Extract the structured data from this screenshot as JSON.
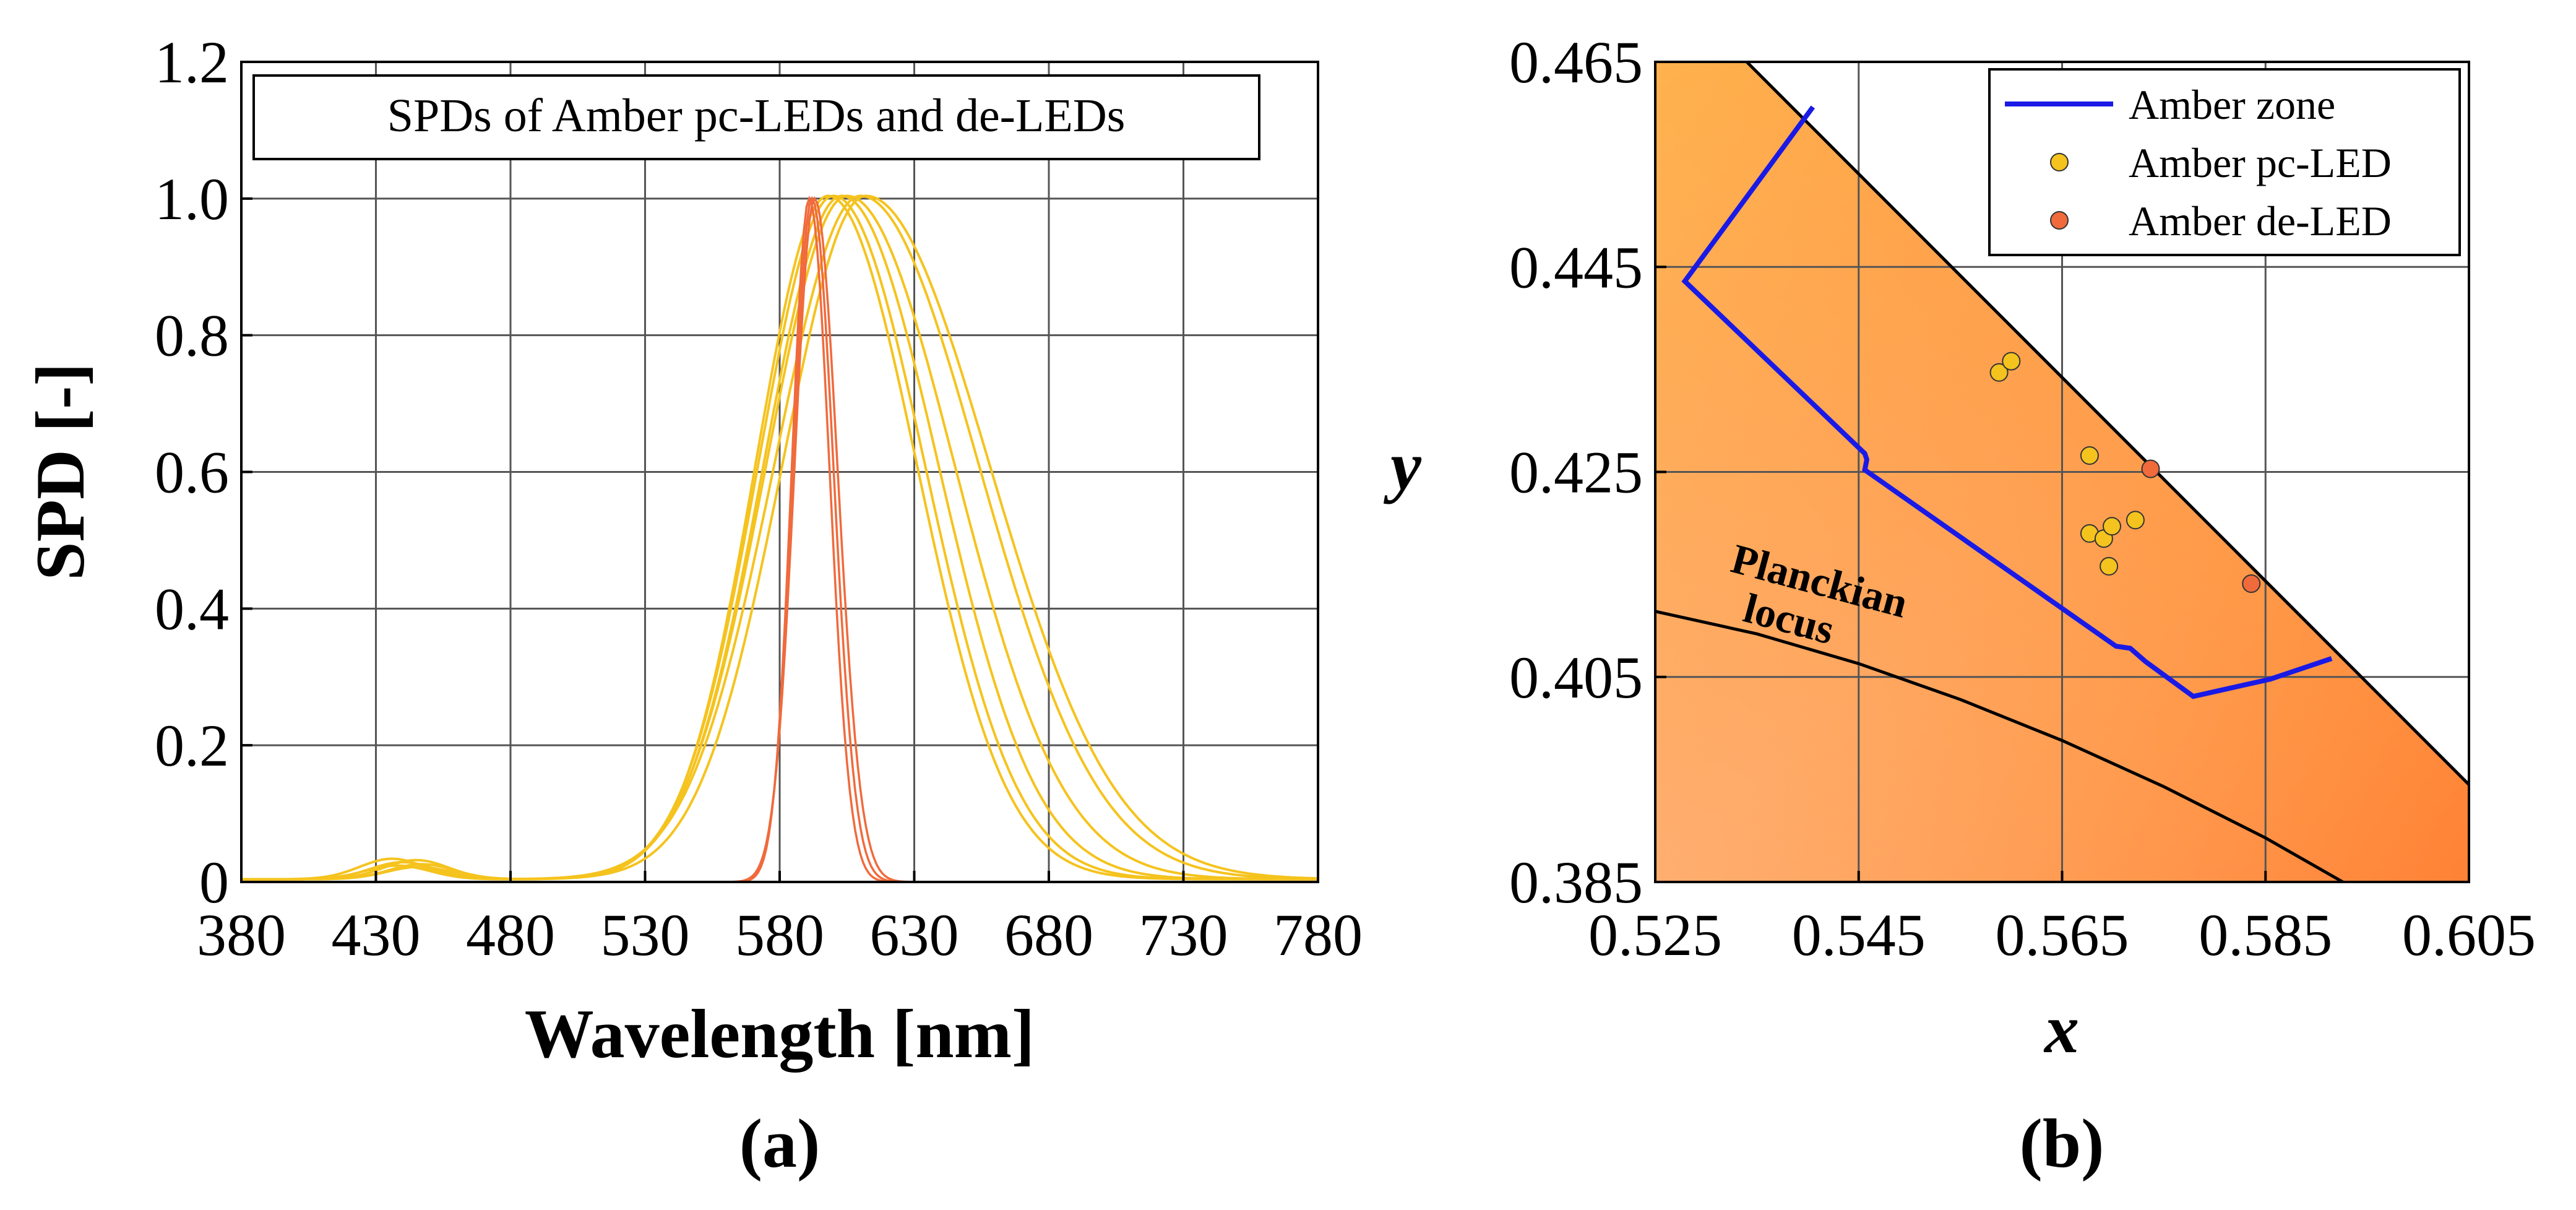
{
  "chart_data": [
    {
      "id": "a",
      "type": "line",
      "panel_label": "(a)",
      "title": "SPDs of Amber pc-LEDs and de-LEDs",
      "xlabel": "Wavelength [nm]",
      "ylabel": "SPD [-]",
      "xlim": [
        380,
        780
      ],
      "ylim": [
        0,
        1.2
      ],
      "xticks": [
        380,
        430,
        480,
        530,
        580,
        630,
        680,
        730,
        780
      ],
      "xtick_labels": [
        "380",
        "430",
        "480",
        "530",
        "580",
        "630",
        "680",
        "730",
        "780"
      ],
      "yticks": [
        0,
        0.2,
        0.4,
        0.6,
        0.8,
        1.0,
        1.2
      ],
      "ytick_labels": [
        "0",
        "0.2",
        "0.4",
        "0.6",
        "0.8",
        "1.0",
        "1.2"
      ],
      "grid": true,
      "series": [
        {
          "group": "pc-LED",
          "color": "#F5C31E",
          "peak": 598,
          "sigma_left": 27,
          "sigma_right": 33,
          "blue_amp": 0.028,
          "blue_peak": 445
        },
        {
          "group": "pc-LED",
          "color": "#F5C31E",
          "peak": 600,
          "sigma_left": 28,
          "sigma_right": 34,
          "blue_amp": 0.022,
          "blue_peak": 447
        },
        {
          "group": "pc-LED",
          "color": "#F5C31E",
          "peak": 603,
          "sigma_left": 29,
          "sigma_right": 36,
          "blue_amp": 0.018,
          "blue_peak": 446
        },
        {
          "group": "pc-LED",
          "color": "#F5C31E",
          "peak": 605,
          "sigma_left": 30,
          "sigma_right": 40,
          "blue_amp": 0.025,
          "blue_peak": 440
        },
        {
          "group": "pc-LED",
          "color": "#F5C31E",
          "peak": 610,
          "sigma_left": 32,
          "sigma_right": 44,
          "blue_amp": 0.03,
          "blue_peak": 436
        },
        {
          "group": "pc-LED",
          "color": "#F5C31E",
          "peak": 612,
          "sigma_left": 31,
          "sigma_right": 46,
          "blue_amp": 0.02,
          "blue_peak": 438
        },
        {
          "group": "de-LED",
          "color": "#F06A3C",
          "peak": 591,
          "sigma_left": 6.5,
          "sigma_right": 7.5,
          "blue_amp": 0,
          "blue_peak": 445
        },
        {
          "group": "de-LED",
          "color": "#F06A3C",
          "peak": 592,
          "sigma_left": 7,
          "sigma_right": 8,
          "blue_amp": 0,
          "blue_peak": 445
        },
        {
          "group": "de-LED",
          "color": "#F06A3C",
          "peak": 593,
          "sigma_left": 7.5,
          "sigma_right": 8.5,
          "blue_amp": 0,
          "blue_peak": 445
        }
      ]
    },
    {
      "id": "b",
      "type": "scatter",
      "panel_label": "(b)",
      "xlabel": "x",
      "ylabel": "y",
      "xlim": [
        0.525,
        0.605
      ],
      "ylim": [
        0.385,
        0.465
      ],
      "xticks": [
        0.525,
        0.545,
        0.565,
        0.585,
        0.605
      ],
      "xtick_labels": [
        "0.525",
        "0.545",
        "0.565",
        "0.585",
        "0.605"
      ],
      "yticks": [
        0.385,
        0.405,
        0.425,
        0.445,
        0.465
      ],
      "ytick_labels": [
        "0.385",
        "0.405",
        "0.425",
        "0.445",
        "0.465"
      ],
      "grid": true,
      "legend_position": "top-right",
      "legend": [
        {
          "label": "Amber zone",
          "kind": "line",
          "color": "#1A1AE6"
        },
        {
          "label": "Amber pc-LED",
          "kind": "marker",
          "color": "#F5C31E"
        },
        {
          "label": "Amber de-LED",
          "kind": "marker",
          "color": "#F06A3C"
        }
      ],
      "spectrum_locus": [
        [
          0.534,
          0.465
        ],
        [
          0.605,
          0.3945
        ]
      ],
      "planckian_label": [
        "Planckian",
        "locus"
      ],
      "planckian_locus": [
        [
          0.525,
          0.4114
        ],
        [
          0.535,
          0.4092
        ],
        [
          0.545,
          0.4063
        ],
        [
          0.555,
          0.4028
        ],
        [
          0.565,
          0.3988
        ],
        [
          0.575,
          0.3943
        ],
        [
          0.585,
          0.3893
        ],
        [
          0.5926,
          0.385
        ]
      ],
      "amber_zone": [
        [
          0.5405,
          0.4606
        ],
        [
          0.5279,
          0.4436
        ],
        [
          0.5456,
          0.4268
        ],
        [
          0.5458,
          0.4262
        ],
        [
          0.5456,
          0.4252
        ],
        [
          0.5703,
          0.408
        ],
        [
          0.5717,
          0.4078
        ],
        [
          0.5732,
          0.4065
        ],
        [
          0.5779,
          0.4031
        ],
        [
          0.5855,
          0.4048
        ],
        [
          0.5915,
          0.4068
        ]
      ],
      "series": [
        {
          "name": "Amber pc-LED",
          "color": "#F5C31E",
          "points": [
            [
              0.5588,
              0.4347
            ],
            [
              0.56,
              0.4358
            ],
            [
              0.5677,
              0.4266
            ],
            [
              0.5677,
              0.419
            ],
            [
              0.5691,
              0.4185
            ],
            [
              0.5699,
              0.4197
            ],
            [
              0.5696,
              0.4158
            ],
            [
              0.5722,
              0.4203
            ]
          ]
        },
        {
          "name": "Amber de-LED",
          "color": "#F06A3C",
          "points": [
            [
              0.5737,
              0.4253
            ],
            [
              0.5836,
              0.4141
            ]
          ]
        }
      ]
    }
  ]
}
